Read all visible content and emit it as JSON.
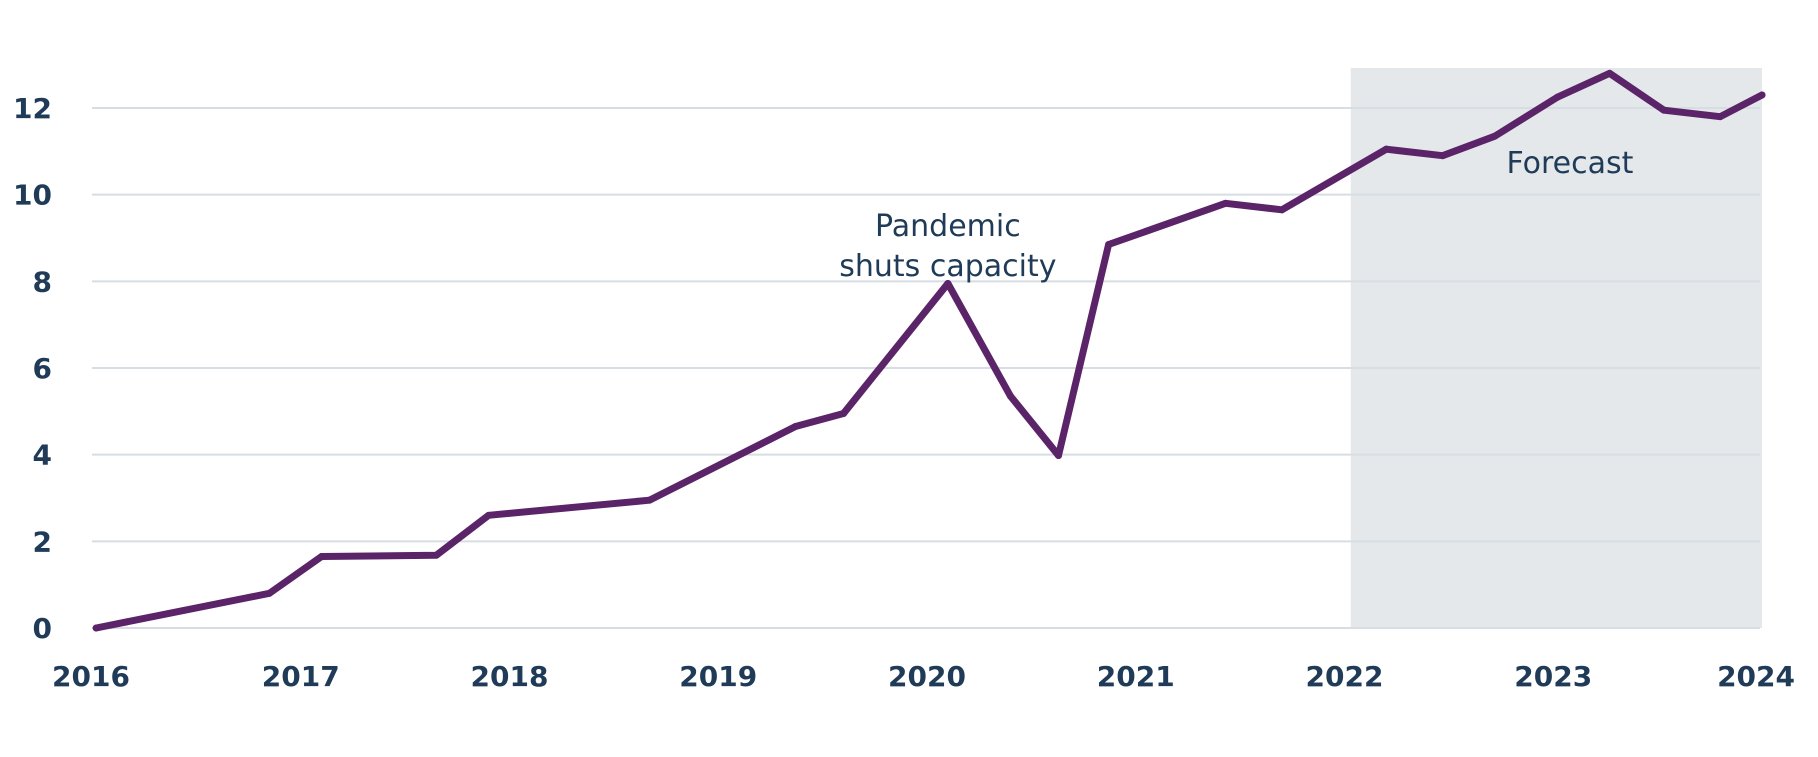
{
  "chart_data": {
    "type": "line",
    "title": "",
    "xlabel": "",
    "ylabel": "",
    "xlim": [
      2016.0,
      2024.0
    ],
    "ylim": [
      0,
      13
    ],
    "x_ticks": [
      2016,
      2017,
      2018,
      2019,
      2020,
      2021,
      2022,
      2023,
      2024
    ],
    "y_ticks": [
      0,
      2,
      4,
      6,
      8,
      10,
      12
    ],
    "grid": true,
    "legend": "none",
    "colors": {
      "line": "#5b2468",
      "forecast_band": "#e4e8eb",
      "text": "#1f3b57",
      "grid": "#d6dde3"
    },
    "series": [
      {
        "points": [
          [
            2016.02,
            0.0
          ],
          [
            2016.85,
            0.8
          ],
          [
            2017.1,
            1.65
          ],
          [
            2017.65,
            1.68
          ],
          [
            2017.9,
            2.6
          ],
          [
            2018.67,
            2.95
          ],
          [
            2019.37,
            4.65
          ],
          [
            2019.6,
            4.95
          ],
          [
            2020.1,
            7.95
          ],
          [
            2020.4,
            5.35
          ],
          [
            2020.63,
            3.98
          ],
          [
            2020.87,
            8.85
          ],
          [
            2021.43,
            9.8
          ],
          [
            2021.7,
            9.65
          ],
          [
            2022.2,
            11.05
          ],
          [
            2022.47,
            10.9
          ],
          [
            2022.72,
            11.35
          ],
          [
            2023.02,
            12.25
          ],
          [
            2023.27,
            12.8
          ],
          [
            2023.53,
            11.95
          ],
          [
            2023.8,
            11.8
          ],
          [
            2024.0,
            12.3
          ]
        ]
      }
    ],
    "regions": [
      {
        "label": "Forecast",
        "x_start": 2022.03,
        "x_end": 2024.0,
        "label_x": 2023.08,
        "label_y": 10.5
      }
    ],
    "annotations": [
      {
        "lines": [
          "Pandemic",
          "shuts capacity"
        ],
        "x": 2020.1,
        "y": 8.4
      }
    ]
  }
}
